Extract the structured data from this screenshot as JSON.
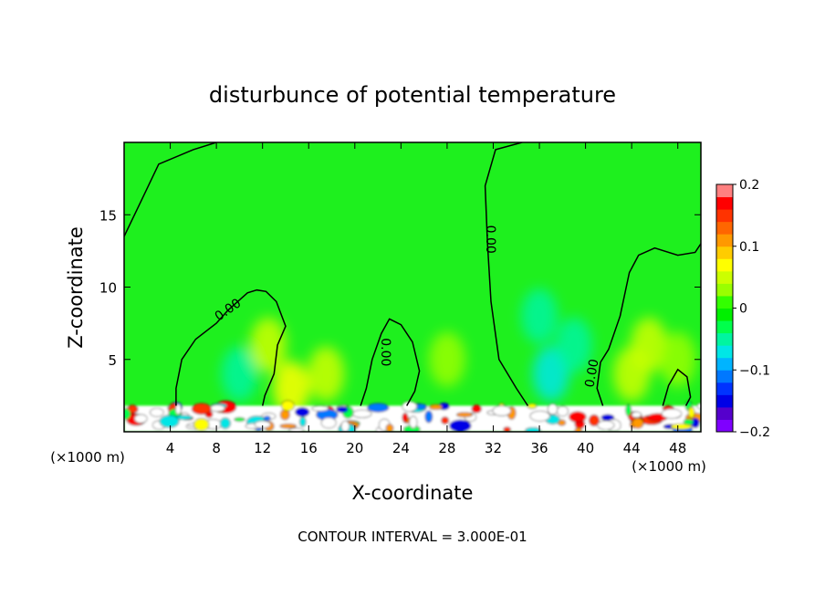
{
  "chart_data": {
    "type": "heatmap",
    "title": "disturbunce of potential temperature",
    "xlabel": "X-coordinate",
    "ylabel": "Z-coordinate",
    "x_unit": "(×1000 m)",
    "xlim": [
      0,
      50
    ],
    "ylim": [
      0,
      20
    ],
    "xticks": [
      4,
      8,
      12,
      16,
      20,
      24,
      28,
      32,
      36,
      40,
      44,
      48
    ],
    "yticks": [
      5,
      10,
      15
    ],
    "contour_label": "0.00",
    "contour_interval_text": "CONTOUR INTERVAL = 3.000E-01",
    "colorbar": {
      "range": [
        -0.2,
        0.2
      ],
      "tick_values": [
        0.2,
        0.1,
        0,
        -0.1,
        -0.2
      ],
      "tick_labels": [
        "0.2",
        "0.1",
        "0",
        "−0.1",
        "−0.2"
      ],
      "colors": [
        "#7f00ff",
        "#5500cc",
        "#0000e6",
        "#0033ff",
        "#0078ff",
        "#00b4ff",
        "#00e6e6",
        "#00f5a0",
        "#00ff4c",
        "#00f000",
        "#33ff00",
        "#99ff00",
        "#ccff00",
        "#ffff00",
        "#ffcc00",
        "#ff9900",
        "#ff6600",
        "#ff3300",
        "#ff0000",
        "#ff8080"
      ]
    },
    "background_field_color": "#1ef01e",
    "near_zero_contours": [
      [
        [
          0,
          13.5
        ],
        [
          1.5,
          16
        ],
        [
          3,
          18.5
        ],
        [
          6,
          19.5
        ],
        [
          8,
          20
        ]
      ],
      [
        [
          4.5,
          1.8
        ],
        [
          4.5,
          3
        ],
        [
          5,
          5
        ],
        [
          6.2,
          6.4
        ],
        [
          8,
          7.5
        ],
        [
          9,
          8.4
        ],
        [
          10.7,
          9.6
        ],
        [
          11.5,
          9.8
        ],
        [
          12.3,
          9.7
        ],
        [
          13.2,
          9
        ],
        [
          14,
          7.3
        ],
        [
          13.3,
          6
        ],
        [
          13,
          4
        ],
        [
          12.2,
          2.5
        ],
        [
          12,
          1.8
        ]
      ],
      [
        [
          20.5,
          1.8
        ],
        [
          21,
          3
        ],
        [
          21.5,
          5
        ],
        [
          22.3,
          6.8
        ],
        [
          23,
          7.8
        ],
        [
          24,
          7.4
        ],
        [
          25,
          6.2
        ],
        [
          25.6,
          4.2
        ],
        [
          25.2,
          2.8
        ],
        [
          24.5,
          1.8
        ]
      ],
      [
        [
          35,
          1.8
        ],
        [
          34,
          3
        ],
        [
          32.5,
          5
        ],
        [
          31.8,
          9
        ],
        [
          31.5,
          13
        ],
        [
          31.3,
          17
        ],
        [
          32.2,
          19.5
        ],
        [
          34.5,
          20
        ]
      ],
      [
        [
          41.5,
          1.8
        ],
        [
          41,
          3
        ],
        [
          41.3,
          4.8
        ],
        [
          42,
          5.7
        ],
        [
          43,
          8
        ],
        [
          43.8,
          11
        ],
        [
          44.6,
          12.2
        ],
        [
          46,
          12.7
        ],
        [
          48,
          12.2
        ],
        [
          49.5,
          12.4
        ],
        [
          50,
          13
        ]
      ],
      [
        [
          46.7,
          1.8
        ],
        [
          47.2,
          3.2
        ],
        [
          48,
          4.3
        ],
        [
          48.8,
          3.8
        ],
        [
          49.1,
          2.4
        ],
        [
          48.7,
          1.8
        ]
      ]
    ],
    "field_blobs": [
      {
        "x": 10,
        "z": 4,
        "value": -0.05
      },
      {
        "x": 12.5,
        "z": 6,
        "value": 0.04
      },
      {
        "x": 14.5,
        "z": 3,
        "value": 0.07
      },
      {
        "x": 17.5,
        "z": 4,
        "value": 0.05
      },
      {
        "x": 28,
        "z": 5,
        "value": 0.03
      },
      {
        "x": 36,
        "z": 8,
        "value": -0.05
      },
      {
        "x": 37,
        "z": 4,
        "value": -0.07
      },
      {
        "x": 39,
        "z": 6,
        "value": -0.04
      },
      {
        "x": 44,
        "z": 4,
        "value": 0.05
      },
      {
        "x": 45.5,
        "z": 6,
        "value": 0.04
      },
      {
        "x": 48,
        "z": 5,
        "value": 0.03
      }
    ]
  }
}
